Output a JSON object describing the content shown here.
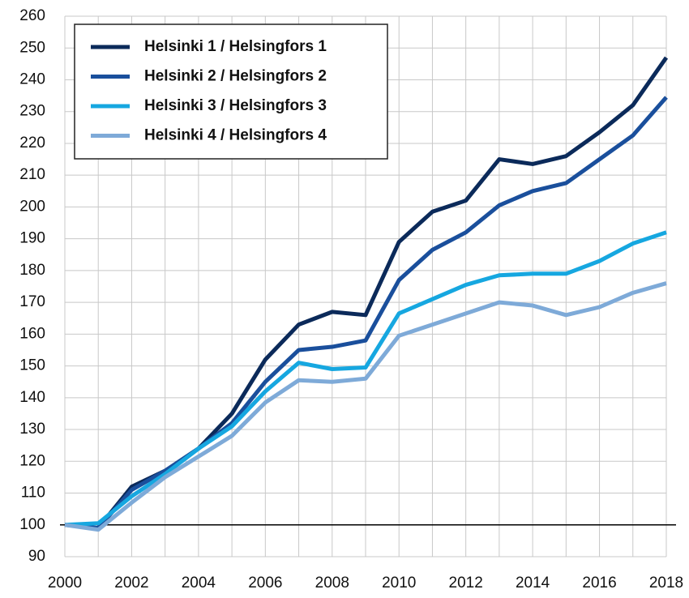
{
  "chart_data": {
    "type": "line",
    "x": [
      2000,
      2001,
      2002,
      2003,
      2004,
      2005,
      2006,
      2007,
      2008,
      2009,
      2010,
      2011,
      2012,
      2013,
      2014,
      2015,
      2016,
      2017,
      2018
    ],
    "series": [
      {
        "name": "Helsinki 1 / Helsingfors 1",
        "color": "#0b2a5a",
        "values": [
          100,
          99,
          112,
          117,
          124,
          135,
          152,
          163,
          167,
          166,
          189,
          198.5,
          202,
          215,
          213.5,
          216,
          223.5,
          232,
          247
        ]
      },
      {
        "name": "Helsinki 2 / Helsingfors 2",
        "color": "#1a4f9c",
        "values": [
          100,
          99,
          111,
          117,
          124,
          132,
          145,
          155,
          156,
          158,
          177,
          186.5,
          192,
          200.5,
          205,
          207.5,
          215,
          222.5,
          234.5
        ]
      },
      {
        "name": "Helsinki 3 / Helsingfors 3",
        "color": "#16a7e0",
        "values": [
          100,
          100.5,
          109,
          116,
          124,
          131,
          142,
          151,
          149,
          149.5,
          166.5,
          171,
          175.5,
          178.5,
          179,
          179,
          183,
          188.5,
          192
        ]
      },
      {
        "name": "Helsinki 4 / Helsingfors 4",
        "color": "#7eaad8",
        "values": [
          100,
          98.5,
          107,
          115,
          121.5,
          128,
          138.5,
          145.5,
          145,
          146,
          159.5,
          163,
          166.5,
          170,
          169,
          166,
          168.5,
          173,
          176
        ]
      }
    ],
    "xlim": [
      2000,
      2018
    ],
    "xticks": [
      2000,
      2002,
      2004,
      2006,
      2008,
      2010,
      2012,
      2014,
      2016,
      2018
    ],
    "xminor": [
      2001,
      2003,
      2005,
      2007,
      2009,
      2011,
      2013,
      2015,
      2017
    ],
    "ylim": [
      90,
      260
    ],
    "yticks": [
      90,
      100,
      110,
      120,
      130,
      140,
      150,
      160,
      170,
      180,
      190,
      200,
      210,
      220,
      230,
      240,
      250,
      260
    ],
    "hline": 100,
    "grid": true,
    "legend": "upper left"
  }
}
